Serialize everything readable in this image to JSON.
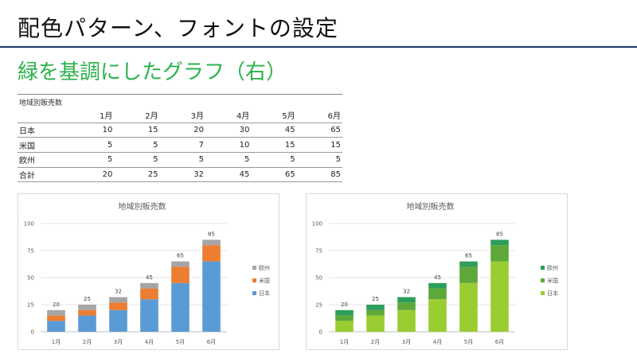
{
  "page": {
    "title": "配色パターン、フォントの設定",
    "subtitle": "緑を基調にしたグラフ（右）"
  },
  "table": {
    "caption": "地域別販売数",
    "headers": [
      "",
      "1月",
      "2月",
      "3月",
      "4月",
      "5月",
      "6月"
    ],
    "rows": [
      {
        "label": "日本",
        "values": [
          "10",
          "15",
          "20",
          "30",
          "45",
          "65"
        ]
      },
      {
        "label": "米国",
        "values": [
          "5",
          "5",
          "7",
          "10",
          "15",
          "15"
        ]
      },
      {
        "label": "欧州",
        "values": [
          "5",
          "5",
          "5",
          "5",
          "5",
          "5"
        ]
      },
      {
        "label": "合計",
        "values": [
          "20",
          "25",
          "32",
          "45",
          "65",
          "85"
        ]
      }
    ]
  },
  "chart_data": [
    {
      "type": "bar",
      "stacked": true,
      "title": "地域別販売数",
      "categories": [
        "1月",
        "2月",
        "3月",
        "4月",
        "5月",
        "6月"
      ],
      "series": [
        {
          "name": "日本",
          "values": [
            10,
            15,
            20,
            30,
            45,
            65
          ],
          "color": "#5b9bd5"
        },
        {
          "name": "米国",
          "values": [
            5,
            5,
            7,
            10,
            15,
            15
          ],
          "color": "#ed7d31"
        },
        {
          "name": "欧州",
          "values": [
            5,
            5,
            5,
            5,
            5,
            5
          ],
          "color": "#a5a5a5"
        }
      ],
      "totals": [
        20,
        25,
        32,
        45,
        65,
        85
      ],
      "yticks": [
        0,
        25,
        50,
        75,
        100
      ],
      "ylim": [
        0,
        100
      ],
      "grid": true,
      "legend": "right"
    },
    {
      "type": "bar",
      "stacked": true,
      "title": "地域別販売数",
      "categories": [
        "1月",
        "2月",
        "3月",
        "4月",
        "5月",
        "6月"
      ],
      "series": [
        {
          "name": "日本",
          "values": [
            10,
            15,
            20,
            30,
            45,
            65
          ],
          "color": "#9acd32"
        },
        {
          "name": "米国",
          "values": [
            5,
            5,
            7,
            10,
            15,
            15
          ],
          "color": "#5ea83a"
        },
        {
          "name": "欧州",
          "values": [
            5,
            5,
            5,
            5,
            5,
            5
          ],
          "color": "#2e9e5b"
        }
      ],
      "totals": [
        20,
        25,
        32,
        45,
        65,
        85
      ],
      "yticks": [
        0,
        25,
        50,
        75,
        100
      ],
      "ylim": [
        0,
        100
      ],
      "grid": true,
      "legend": "right"
    }
  ]
}
